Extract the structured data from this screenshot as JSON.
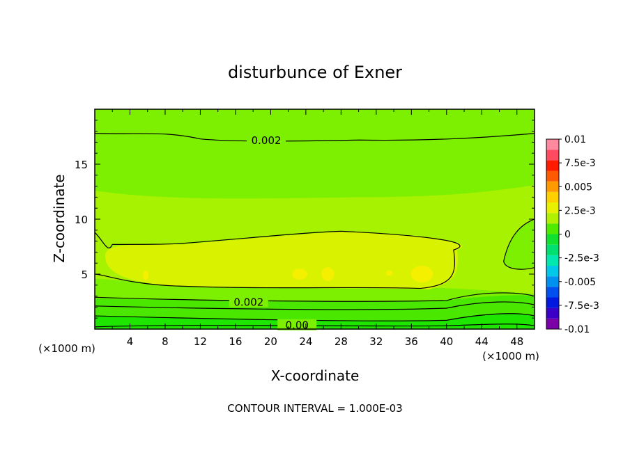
{
  "chart_data": {
    "type": "heatmap",
    "title": "disturbunce of Exner",
    "xlabel": "X-coordinate",
    "ylabel": "Z-coordinate",
    "x_unit_left": "(×1000 m)",
    "x_unit_right": "(×1000 m)",
    "xlim": [
      0,
      50
    ],
    "ylim": [
      0,
      20
    ],
    "x_ticks": [
      4,
      8,
      12,
      16,
      20,
      24,
      28,
      32,
      36,
      40,
      44,
      48
    ],
    "y_ticks": [
      5,
      10,
      15
    ],
    "footer": "CONTOUR INTERVAL = 1.000E-03",
    "colorbar": {
      "min": -0.01,
      "max": 0.01,
      "labels": [
        "0.01",
        "7.5e-3",
        "0.005",
        "2.5e-3",
        "0",
        "-2.5e-3",
        "-0.005",
        "-7.5e-3",
        "-0.01"
      ],
      "label_values": [
        0.01,
        0.0075,
        0.005,
        0.0025,
        0,
        -0.0025,
        -0.005,
        -0.0075,
        -0.01
      ],
      "colors": [
        "#7b00a8",
        "#3a00c8",
        "#0018e0",
        "#0050f0",
        "#0090f0",
        "#00c8e8",
        "#00e8b0",
        "#00e070",
        "#10e030",
        "#50ea00",
        "#b0f000",
        "#e8f000",
        "#ffd000",
        "#ff9a00",
        "#ff5a00",
        "#ff1a00",
        "#ff4a60",
        "#ff8aa0"
      ]
    },
    "contour_labels": [
      {
        "text": "0.002",
        "x": 19.5,
        "z": 17.2
      },
      {
        "text": "0.002",
        "x": 17.5,
        "z": 2.5
      },
      {
        "text": "0.00",
        "x": 23.0,
        "z": 0.4
      }
    ],
    "field_bands": [
      {
        "level": "0.002 to 0.003",
        "color": "#7cf000",
        "z_range": [
          12.3,
          20
        ]
      },
      {
        "level": "0.003 to 0.004",
        "color": "#a6f200",
        "z_range": [
          4.2,
          12.3
        ]
      },
      {
        "level": "0.004 to 0.005",
        "color": "#d8f200",
        "z_range": [
          4.2,
          7.8
        ]
      },
      {
        "level": "0.001 to 0.002",
        "color": "#4ae800",
        "z_range": [
          1.2,
          2.9
        ]
      },
      {
        "level": "0 to 0.001",
        "color": "#1ee600",
        "z_range": [
          0,
          1.2
        ]
      }
    ]
  }
}
